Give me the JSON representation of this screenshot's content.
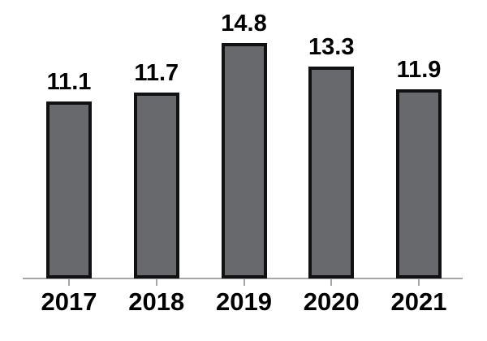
{
  "chart_data": {
    "type": "bar",
    "title": "",
    "xlabel": "",
    "ylabel": "",
    "categories": [
      "2017",
      "2018",
      "2019",
      "2020",
      "2021"
    ],
    "values": [
      11.1,
      11.7,
      14.8,
      13.3,
      11.9
    ],
    "value_labels": [
      "11.1",
      "11.7",
      "14.8",
      "13.3",
      "11.9"
    ],
    "ylim": [
      0,
      17.5
    ],
    "grid": false,
    "legend": false,
    "colors": {
      "bar_fill": "#67696c",
      "bar_border": "#111111",
      "axis_line": "#a6a6a6",
      "tick": "#a6a6a6",
      "label_text": "#000000"
    }
  }
}
